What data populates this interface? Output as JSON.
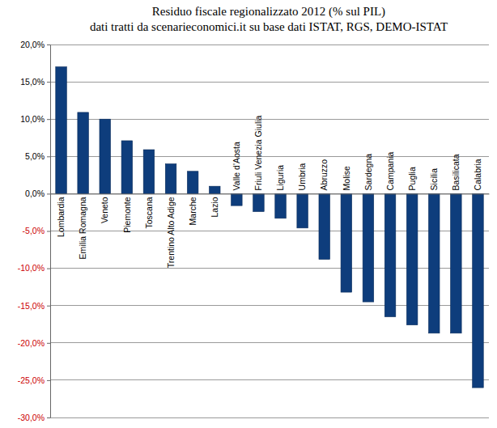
{
  "chart_data": {
    "type": "bar",
    "title": "Residuo fiscale regionalizzato 2012 (% sul PIL)",
    "subtitle": "dati tratti da scenarieconomici.it su base dati ISTAT, RGS, DEMO-ISTAT",
    "categories": [
      "Lombardia",
      "Emilia Romagna",
      "Veneto",
      "Piemonte",
      "Toscana",
      "Trentino Alto Adige",
      "Marche",
      "Lazio",
      "Valle d'Aosta",
      "Friuli Venezia Giulia",
      "Liguria",
      "Umbria",
      "Abruzzo",
      "Molise",
      "Sardegna",
      "Campania",
      "Puglia",
      "Sicilia",
      "Basilicata",
      "Calabria"
    ],
    "values": [
      17.0,
      10.9,
      10.0,
      7.1,
      5.9,
      4.0,
      3.0,
      1.0,
      -1.6,
      -2.4,
      -3.3,
      -4.6,
      -8.8,
      -13.2,
      -14.5,
      -16.5,
      -17.6,
      -18.7,
      -18.7,
      -26.0
    ],
    "color": "#0e3d7c",
    "ylim": [
      -30,
      20
    ],
    "yticks": [
      {
        "value": -30,
        "label": "-30,0%"
      },
      {
        "value": -25,
        "label": "-25,0%"
      },
      {
        "value": -20,
        "label": "-20,0%"
      },
      {
        "value": -15,
        "label": "-15,0%"
      },
      {
        "value": -10,
        "label": "-10,0%"
      },
      {
        "value": -5,
        "label": "-5,0%"
      },
      {
        "value": 0,
        "label": "0,0%"
      },
      {
        "value": 5,
        "label": "5,0%"
      },
      {
        "value": 10,
        "label": "10,0%"
      },
      {
        "value": 15,
        "label": "15,0%"
      },
      {
        "value": 20,
        "label": "20,0%"
      }
    ],
    "grid": true
  }
}
